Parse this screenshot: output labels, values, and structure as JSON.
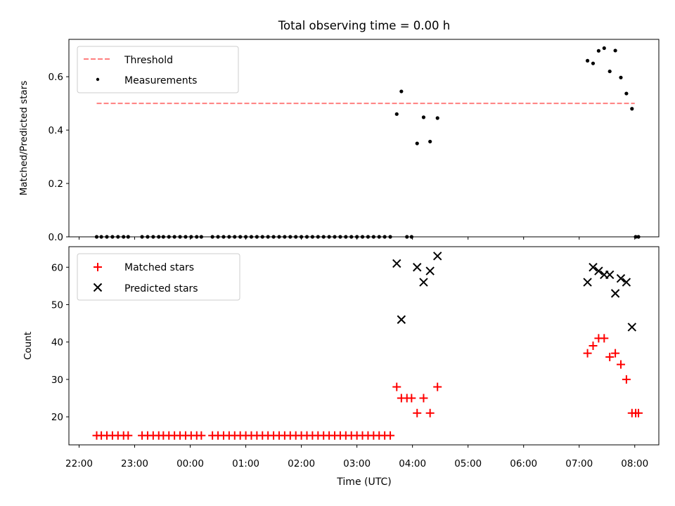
{
  "chart_data": [
    {
      "type": "scatter",
      "title": "Total observing time = 0.00 h",
      "ylabel": "Matched/Predicted stars",
      "xlim": [
        "21:49",
        "08:26"
      ],
      "ylim": [
        0,
        0.74
      ],
      "yticks": [
        0.0,
        0.2,
        0.4,
        0.6
      ],
      "ytick_labels": [
        "0.0",
        "0.2",
        "0.4",
        "0.6"
      ],
      "grid": false,
      "legend": {
        "position": "top-left",
        "entries": [
          "Threshold",
          "Measurements"
        ]
      },
      "threshold": {
        "name": "Threshold",
        "value": 0.5,
        "x_range": [
          "22:19",
          "08:00"
        ],
        "color": "#ff7f7f",
        "style": "dashed"
      },
      "series": [
        {
          "name": "Measurements",
          "color": "#000000",
          "marker": "dot",
          "x": [
            "22:19",
            "22:24",
            "22:30",
            "22:36",
            "22:42",
            "22:48",
            "22:53",
            "23:08",
            "23:14",
            "23:20",
            "23:26",
            "23:31",
            "23:37",
            "23:43",
            "23:49",
            "23:55",
            "00:01",
            "00:07",
            "00:12",
            "00:24",
            "00:30",
            "00:36",
            "00:42",
            "00:48",
            "00:54",
            "01:00",
            "01:06",
            "01:12",
            "01:18",
            "01:24",
            "01:30",
            "01:36",
            "01:42",
            "01:48",
            "01:54",
            "02:00",
            "02:06",
            "02:12",
            "02:18",
            "02:24",
            "02:30",
            "02:36",
            "02:42",
            "02:48",
            "02:54",
            "03:00",
            "03:06",
            "03:12",
            "03:18",
            "03:24",
            "03:30",
            "03:36",
            "03:43",
            "03:48",
            "03:54",
            "03:59",
            "04:05",
            "04:12",
            "04:19",
            "04:27",
            "07:09",
            "07:15",
            "07:21",
            "07:27",
            "07:33",
            "07:39",
            "07:45",
            "07:51",
            "07:57",
            "08:01",
            "08:04"
          ],
          "y": [
            0,
            0,
            0,
            0,
            0,
            0,
            0,
            0,
            0,
            0,
            0,
            0,
            0,
            0,
            0,
            0,
            0,
            0,
            0,
            0,
            0,
            0,
            0,
            0,
            0,
            0,
            0,
            0,
            0,
            0,
            0,
            0,
            0,
            0,
            0,
            0,
            0,
            0,
            0,
            0,
            0,
            0,
            0,
            0,
            0,
            0,
            0,
            0,
            0,
            0,
            0,
            0,
            0.46,
            0.545,
            0,
            0,
            0.35,
            0.448,
            0.357,
            0.445,
            0.66,
            0.65,
            0.697,
            0.707,
            0.62,
            0.698,
            0.597,
            0.537,
            0.48,
            0,
            0
          ]
        }
      ]
    },
    {
      "type": "scatter",
      "xlabel": "Time (UTC)",
      "ylabel": "Count",
      "xlim": [
        "21:49",
        "08:26"
      ],
      "ylim": [
        12.5,
        65.5
      ],
      "xticks": [
        "22:00",
        "23:00",
        "00:00",
        "01:00",
        "02:00",
        "03:00",
        "04:00",
        "05:00",
        "06:00",
        "07:00",
        "08:00"
      ],
      "xtick_labels": [
        "22:00",
        "23:00",
        "00:00",
        "01:00",
        "02:00",
        "03:00",
        "04:00",
        "05:00",
        "06:00",
        "07:00",
        "08:00"
      ],
      "yticks": [
        20,
        30,
        40,
        50,
        60
      ],
      "ytick_labels": [
        "20",
        "30",
        "40",
        "50",
        "60"
      ],
      "grid": false,
      "legend": {
        "position": "top-left",
        "entries": [
          "Matched stars",
          "Predicted stars"
        ]
      },
      "series": [
        {
          "name": "Matched stars",
          "color": "#ff0000",
          "marker": "plus",
          "x": [
            "22:19",
            "22:24",
            "22:30",
            "22:36",
            "22:42",
            "22:48",
            "22:53",
            "23:08",
            "23:14",
            "23:20",
            "23:26",
            "23:31",
            "23:37",
            "23:43",
            "23:49",
            "23:55",
            "00:01",
            "00:07",
            "00:12",
            "00:24",
            "00:30",
            "00:36",
            "00:42",
            "00:48",
            "00:54",
            "01:00",
            "01:06",
            "01:12",
            "01:18",
            "01:24",
            "01:30",
            "01:36",
            "01:42",
            "01:48",
            "01:54",
            "02:00",
            "02:06",
            "02:12",
            "02:18",
            "02:24",
            "02:30",
            "02:36",
            "02:42",
            "02:48",
            "02:54",
            "03:00",
            "03:06",
            "03:12",
            "03:18",
            "03:24",
            "03:30",
            "03:36",
            "03:43",
            "03:48",
            "03:54",
            "03:59",
            "04:05",
            "04:12",
            "04:19",
            "04:27",
            "07:09",
            "07:15",
            "07:21",
            "07:27",
            "07:33",
            "07:39",
            "07:45",
            "07:51",
            "07:57",
            "08:01",
            "08:04"
          ],
          "y": [
            15,
            15,
            15,
            15,
            15,
            15,
            15,
            15,
            15,
            15,
            15,
            15,
            15,
            15,
            15,
            15,
            15,
            15,
            15,
            15,
            15,
            15,
            15,
            15,
            15,
            15,
            15,
            15,
            15,
            15,
            15,
            15,
            15,
            15,
            15,
            15,
            15,
            15,
            15,
            15,
            15,
            15,
            15,
            15,
            15,
            15,
            15,
            15,
            15,
            15,
            15,
            15,
            28,
            25,
            25,
            25,
            21,
            25,
            21,
            28,
            37,
            39,
            41,
            41,
            36,
            37,
            34,
            30,
            21,
            21,
            21
          ]
        },
        {
          "name": "Predicted stars",
          "color": "#000000",
          "marker": "x",
          "x": [
            "03:43",
            "03:48",
            "04:05",
            "04:12",
            "04:19",
            "04:27",
            "07:09",
            "07:15",
            "07:21",
            "07:27",
            "07:33",
            "07:39",
            "07:45",
            "07:51",
            "07:57"
          ],
          "y": [
            61,
            46,
            60,
            56,
            59,
            63,
            56,
            60,
            59,
            58,
            58,
            53,
            57,
            56,
            44
          ]
        }
      ]
    }
  ]
}
